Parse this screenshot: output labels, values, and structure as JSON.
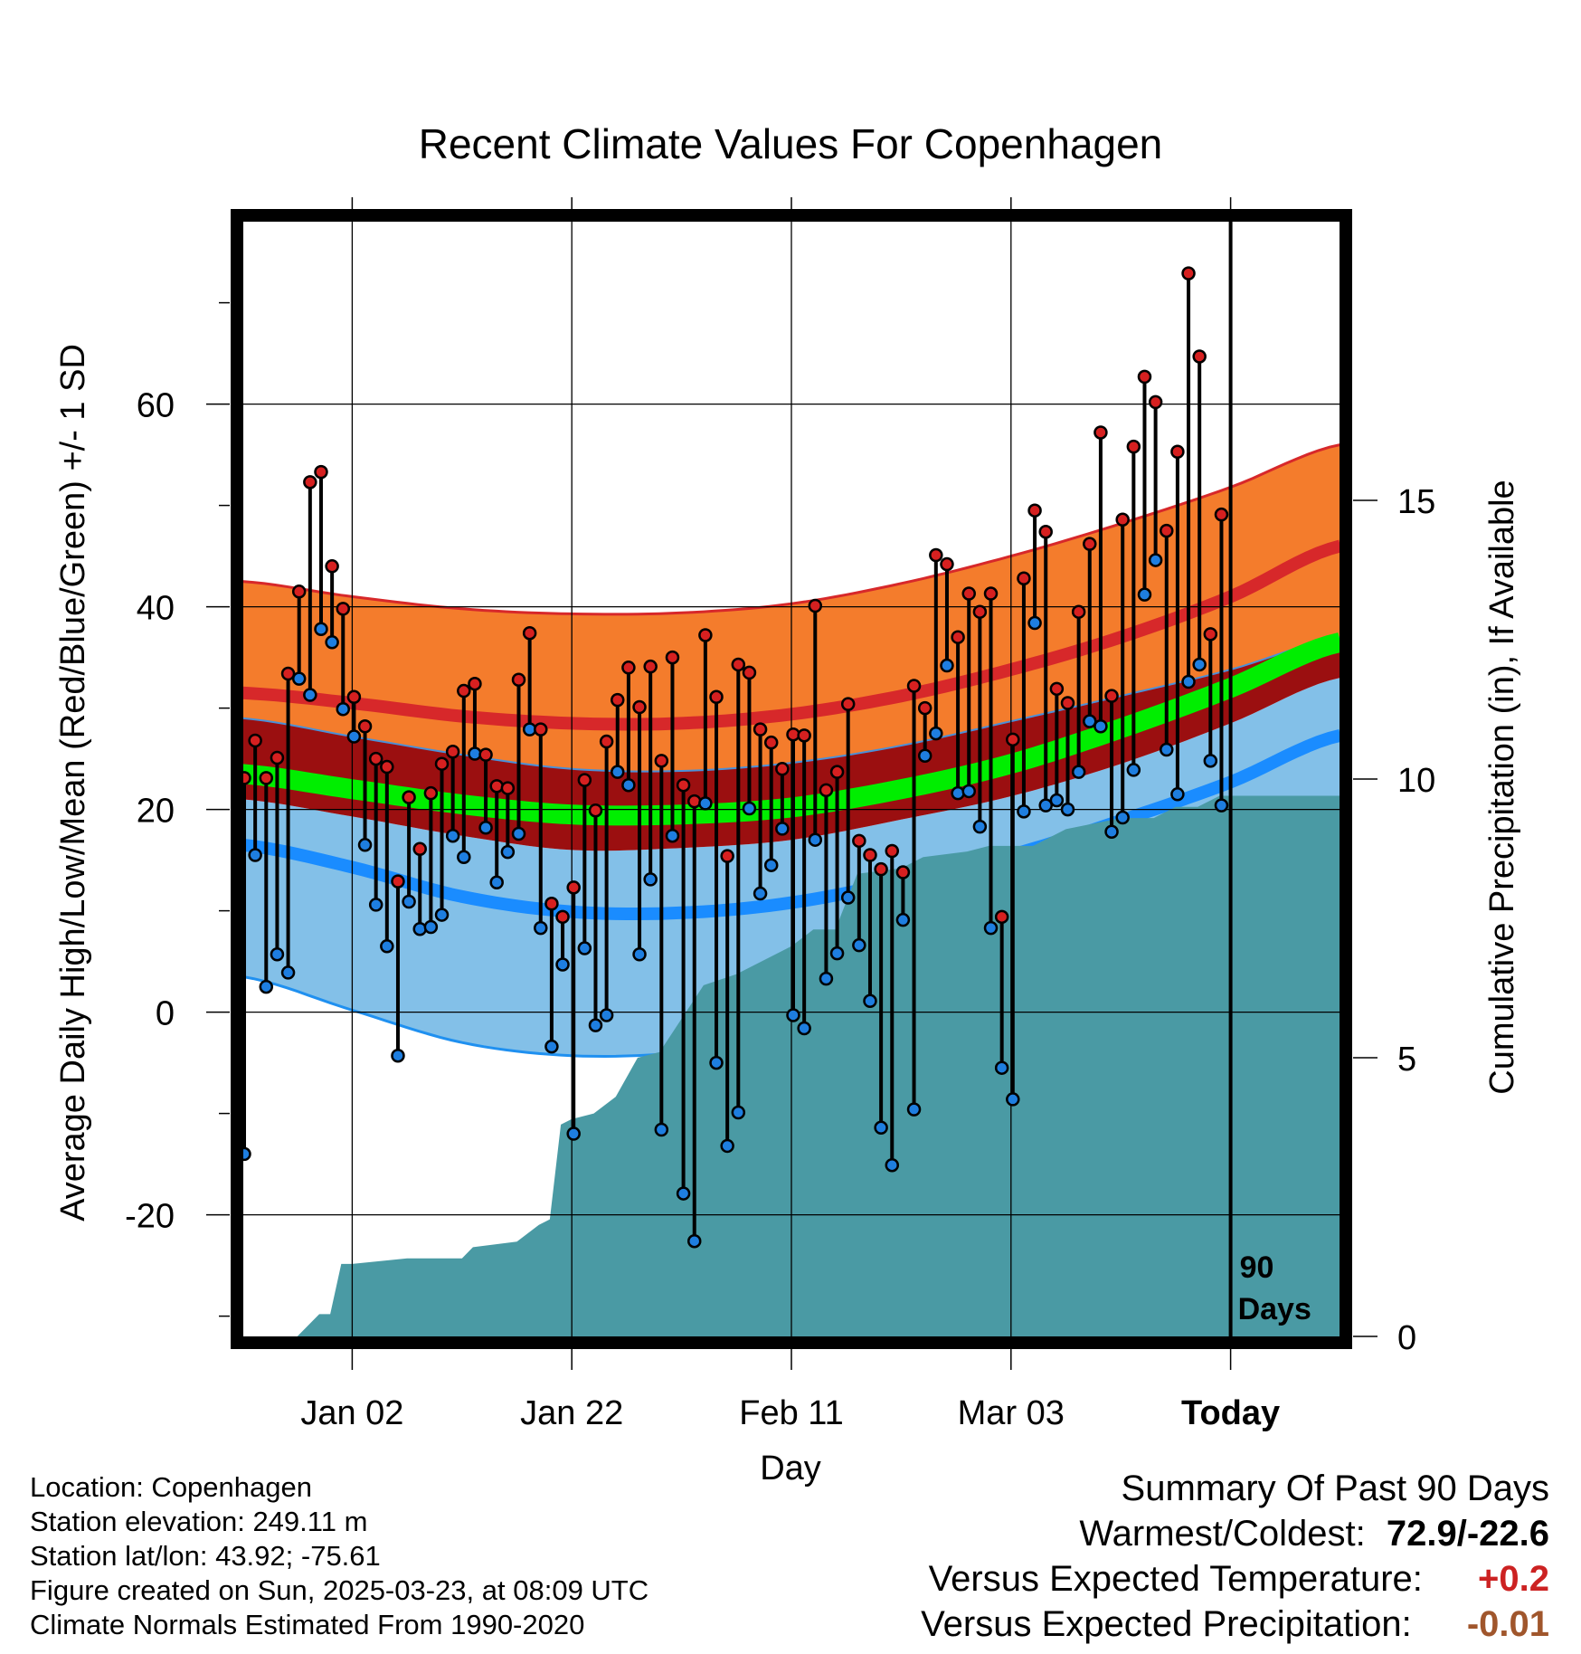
{
  "title": "Recent Climate Values For Copenhagen",
  "footer": {
    "location": "Location: Copenhagen",
    "elevation": "Station elevation: 249.11 m",
    "latlon": "Station lat/lon: 43.92; -75.61",
    "created": "Figure created on Sun, 2025-03-23, at 08:09 UTC",
    "normals": "Climate Normals Estimated From 1990-2020"
  },
  "summary": {
    "title": "Summary Of Past 90 Days",
    "extremes_label": "Warmest/Coldest:",
    "extremes_value": "72.9/-22.6",
    "temp_label": "Versus Expected Temperature:",
    "temp_value": "+0.2",
    "precip_label": "Versus Expected Precipitation:",
    "precip_value": "-0.01"
  },
  "chart_data": {
    "type": "line",
    "title": "Recent Climate Values For Copenhagen",
    "xlabel": "Day",
    "ylabel": "Average Daily High/Low/Mean (Red/Blue/Green) +/- 1 SD",
    "y2label": "Cumulative Precipitation (in), If Available",
    "x_tick_labels": [
      "Jan 02",
      "Jan 22",
      "Feb 11",
      "Mar 03",
      "Today"
    ],
    "x_tick_days": [
      10,
      30,
      50,
      70,
      90
    ],
    "xlim": [
      0,
      100
    ],
    "ylim": [
      -32,
      78
    ],
    "y_ticks": [
      -20,
      0,
      20,
      40,
      60
    ],
    "y2lim": [
      0,
      20
    ],
    "y2_ticks": [
      0,
      5,
      10,
      15
    ],
    "grid": true,
    "today_marker": {
      "day": 90,
      "label_line1": "90",
      "label_line2": "Days"
    },
    "colors": {
      "high_band": "#f47c2c",
      "high_mean": "#d7282a",
      "mean_band": "#9b0f10",
      "mean_line": "#00ee00",
      "low_band": "#83c0e8",
      "low_mean": "#1a8cff",
      "low_edge": "#1f90f0",
      "precip": "#4a9aa4",
      "high_point": "#d62020",
      "low_point": "#1e7ee0"
    },
    "normals": {
      "days": [
        0,
        10,
        20,
        30,
        40,
        50,
        60,
        70,
        80,
        90,
        100
      ],
      "high_plus_sd": [
        42.5,
        41,
        39.8,
        39.3,
        39.4,
        40.3,
        42.3,
        45,
        48.2,
        51.8,
        56
      ],
      "high_mean": [
        31.5,
        30.5,
        29.2,
        28.5,
        28.5,
        29.4,
        31.2,
        33.8,
        37,
        41,
        46
      ],
      "high_minus_sd_mean_plus_sd": [
        29,
        27.2,
        25.4,
        24,
        23.8,
        24.6,
        26.3,
        28.7,
        31.2,
        33.8,
        37
      ],
      "mean": [
        23.5,
        22,
        20.5,
        19.5,
        19.5,
        20.2,
        22,
        24.5,
        28,
        32,
        36.5
      ],
      "mean_minus_sd": [
        21,
        19.3,
        17.4,
        16,
        16.2,
        17,
        19,
        21.3,
        24.5,
        28.5,
        33
      ],
      "low_mean": [
        16.5,
        14.3,
        11.4,
        9.9,
        9.8,
        10.8,
        12.9,
        15.5,
        18.9,
        22.7,
        27.3
      ],
      "low_minus_sd": [
        3.5,
        0.2,
        -3,
        -4.3,
        -4,
        -2.5,
        0.2,
        3.5,
        7.5,
        12.5,
        18.2
      ]
    },
    "daily": [
      {
        "day": 0,
        "high": 23.1,
        "low": -14.0
      },
      {
        "day": 1,
        "high": 26.8,
        "low": 15.5
      },
      {
        "day": 2,
        "high": 23.1,
        "low": 2.5
      },
      {
        "day": 3,
        "high": 25.1,
        "low": 5.7
      },
      {
        "day": 4,
        "high": 33.4,
        "low": 3.9
      },
      {
        "day": 5,
        "high": 41.5,
        "low": 32.9
      },
      {
        "day": 6,
        "high": 52.3,
        "low": 31.3
      },
      {
        "day": 7,
        "high": 53.3,
        "low": 37.8
      },
      {
        "day": 8,
        "high": 44.0,
        "low": 36.5
      },
      {
        "day": 9,
        "high": 39.8,
        "low": 29.9
      },
      {
        "day": 10,
        "high": 31.1,
        "low": 27.2
      },
      {
        "day": 11,
        "high": 28.2,
        "low": 16.5
      },
      {
        "day": 12,
        "high": 25.0,
        "low": 10.6
      },
      {
        "day": 13,
        "high": 24.2,
        "low": 6.5
      },
      {
        "day": 14,
        "high": 12.9,
        "low": -4.3
      },
      {
        "day": 15,
        "high": 21.2,
        "low": 10.9
      },
      {
        "day": 16,
        "high": 16.1,
        "low": 8.2
      },
      {
        "day": 17,
        "high": 21.6,
        "low": 8.4
      },
      {
        "day": 18,
        "high": 24.5,
        "low": 9.6
      },
      {
        "day": 19,
        "high": 25.7,
        "low": 17.4
      },
      {
        "day": 20,
        "high": 31.7,
        "low": 15.3
      },
      {
        "day": 21,
        "high": 32.4,
        "low": 25.5
      },
      {
        "day": 22,
        "high": 25.4,
        "low": 18.2
      },
      {
        "day": 23,
        "high": 22.3,
        "low": 12.8
      },
      {
        "day": 24,
        "high": 22.1,
        "low": 15.8
      },
      {
        "day": 25,
        "high": 32.8,
        "low": 17.6
      },
      {
        "day": 26,
        "high": 37.4,
        "low": 27.9
      },
      {
        "day": 27,
        "high": 27.9,
        "low": 8.3
      },
      {
        "day": 28,
        "high": 10.7,
        "low": -3.4
      },
      {
        "day": 29,
        "high": 9.4,
        "low": 4.7
      },
      {
        "day": 30,
        "high": 12.3,
        "low": -12.0
      },
      {
        "day": 31,
        "high": 22.9,
        "low": 6.3
      },
      {
        "day": 32,
        "high": 19.9,
        "low": -1.3
      },
      {
        "day": 33,
        "high": 26.7,
        "low": -0.3
      },
      {
        "day": 34,
        "high": 30.8,
        "low": 23.7
      },
      {
        "day": 35,
        "high": 34.0,
        "low": 22.4
      },
      {
        "day": 36,
        "high": 30.1,
        "low": 5.7
      },
      {
        "day": 37,
        "high": 34.1,
        "low": 13.1
      },
      {
        "day": 38,
        "high": 24.8,
        "low": -11.6
      },
      {
        "day": 39,
        "high": 35.0,
        "low": 17.4
      },
      {
        "day": 40,
        "high": 22.4,
        "low": -17.9
      },
      {
        "day": 41,
        "high": 20.8,
        "low": -22.6
      },
      {
        "day": 42,
        "high": 37.2,
        "low": 20.6
      },
      {
        "day": 43,
        "high": 31.1,
        "low": -5.0
      },
      {
        "day": 44,
        "high": 15.4,
        "low": -13.2
      },
      {
        "day": 45,
        "high": 34.3,
        "low": -9.9
      },
      {
        "day": 46,
        "high": 33.5,
        "low": 20.1
      },
      {
        "day": 47,
        "high": 27.9,
        "low": 11.7
      },
      {
        "day": 48,
        "high": 26.6,
        "low": 14.5
      },
      {
        "day": 49,
        "high": 24.0,
        "low": 18.1
      },
      {
        "day": 50,
        "high": 27.4,
        "low": -0.3
      },
      {
        "day": 51,
        "high": 27.3,
        "low": -1.6
      },
      {
        "day": 52,
        "high": 40.1,
        "low": 17.0
      },
      {
        "day": 53,
        "high": 21.9,
        "low": 3.3
      },
      {
        "day": 54,
        "high": 23.7,
        "low": 5.8
      },
      {
        "day": 55,
        "high": 30.4,
        "low": 11.3
      },
      {
        "day": 56,
        "high": 16.9,
        "low": 6.6
      },
      {
        "day": 57,
        "high": 15.5,
        "low": 1.1
      },
      {
        "day": 58,
        "high": 14.1,
        "low": -11.4
      },
      {
        "day": 59,
        "high": 15.9,
        "low": -15.1
      },
      {
        "day": 60,
        "high": 13.8,
        "low": 9.1
      },
      {
        "day": 61,
        "high": 32.2,
        "low": -9.6
      },
      {
        "day": 62,
        "high": 30.0,
        "low": 25.3
      },
      {
        "day": 63,
        "high": 45.1,
        "low": 27.5
      },
      {
        "day": 64,
        "high": 44.2,
        "low": 34.2
      },
      {
        "day": 65,
        "high": 37.0,
        "low": 21.6
      },
      {
        "day": 66,
        "high": 41.3,
        "low": 21.8
      },
      {
        "day": 67,
        "high": 39.5,
        "low": 18.3
      },
      {
        "day": 68,
        "high": 41.3,
        "low": 8.3
      },
      {
        "day": 69,
        "high": 9.4,
        "low": -5.5
      },
      {
        "day": 70,
        "high": 26.9,
        "low": -8.6
      },
      {
        "day": 71,
        "high": 42.8,
        "low": 19.8
      },
      {
        "day": 72,
        "high": 49.5,
        "low": 38.4
      },
      {
        "day": 73,
        "high": 47.4,
        "low": 20.4
      },
      {
        "day": 74,
        "high": 31.9,
        "low": 20.9
      },
      {
        "day": 75,
        "high": 30.5,
        "low": 20.0
      },
      {
        "day": 76,
        "high": 39.5,
        "low": 23.7
      },
      {
        "day": 77,
        "high": 46.2,
        "low": 28.7
      },
      {
        "day": 78,
        "high": 57.2,
        "low": 28.2
      },
      {
        "day": 79,
        "high": 31.2,
        "low": 17.8
      },
      {
        "day": 80,
        "high": 48.6,
        "low": 19.2
      },
      {
        "day": 81,
        "high": 55.8,
        "low": 23.9
      },
      {
        "day": 82,
        "high": 62.7,
        "low": 41.2
      },
      {
        "day": 83,
        "high": 60.2,
        "low": 44.6
      },
      {
        "day": 84,
        "high": 47.5,
        "low": 25.9
      },
      {
        "day": 85,
        "high": 55.3,
        "low": 21.5
      },
      {
        "day": 86,
        "high": 72.9,
        "low": 32.6
      },
      {
        "day": 87,
        "high": 64.7,
        "low": 34.3
      },
      {
        "day": 88,
        "high": 37.3,
        "low": 24.8
      },
      {
        "day": 89,
        "high": 49.1,
        "low": 20.4
      }
    ],
    "cumulative_precip": {
      "days": [
        0,
        5,
        7,
        8,
        9,
        10,
        15,
        20,
        21,
        25,
        27,
        28,
        29,
        30,
        32,
        34,
        36,
        38,
        40,
        42,
        45,
        48,
        50,
        52,
        54,
        56,
        60,
        62,
        66,
        68,
        72,
        75,
        80,
        83,
        85,
        87,
        89,
        93,
        100
      ],
      "values": [
        0,
        0,
        0.4,
        0.4,
        1.3,
        1.3,
        1.4,
        1.4,
        1.6,
        1.7,
        2.0,
        2.1,
        3.8,
        3.9,
        4.0,
        4.3,
        5.0,
        5.1,
        5.7,
        6.3,
        6.5,
        6.8,
        7.0,
        7.3,
        7.3,
        8.3,
        8.4,
        8.6,
        8.7,
        8.8,
        8.8,
        9.1,
        9.3,
        9.3,
        9.5,
        9.5,
        9.7,
        9.7,
        9.7
      ]
    }
  }
}
